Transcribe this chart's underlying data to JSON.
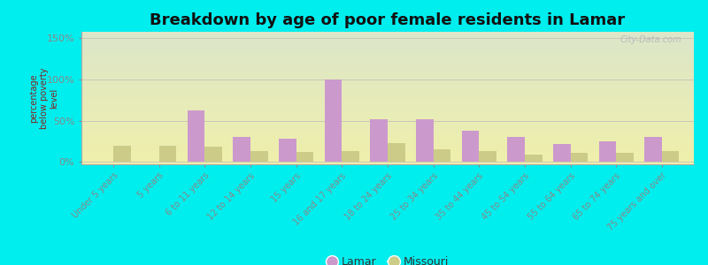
{
  "title": "Breakdown by age of poor female residents in Lamar",
  "ylabel": "percentage\nbelow poverty\nlevel",
  "categories": [
    "Under 5 years",
    "5 years",
    "6 to 11 years",
    "12 to 14 years",
    "15 years",
    "16 and 17 years",
    "18 to 24 years",
    "25 to 34 years",
    "35 to 44 years",
    "45 to 54 years",
    "55 to 64 years",
    "65 to 74 years",
    "75 years and over"
  ],
  "lamar_values": [
    0,
    0,
    63,
    30,
    28,
    100,
    52,
    52,
    38,
    30,
    22,
    25,
    30
  ],
  "missouri_values": [
    20,
    20,
    18,
    13,
    12,
    13,
    23,
    15,
    13,
    9,
    11,
    11,
    13
  ],
  "lamar_color": "#cc99cc",
  "missouri_color": "#cccc88",
  "outer_bg": "#00eeee",
  "plot_bg": "#e8f0d8",
  "yticks": [
    0,
    50,
    100,
    150
  ],
  "ytick_labels": [
    "0%",
    "50%",
    "100%",
    "150%"
  ],
  "ylim": [
    -3,
    158
  ],
  "bar_width": 0.38,
  "title_fontsize": 13,
  "legend_lamar": "Lamar",
  "legend_missouri": "Missouri",
  "watermark": "City-Data.com"
}
